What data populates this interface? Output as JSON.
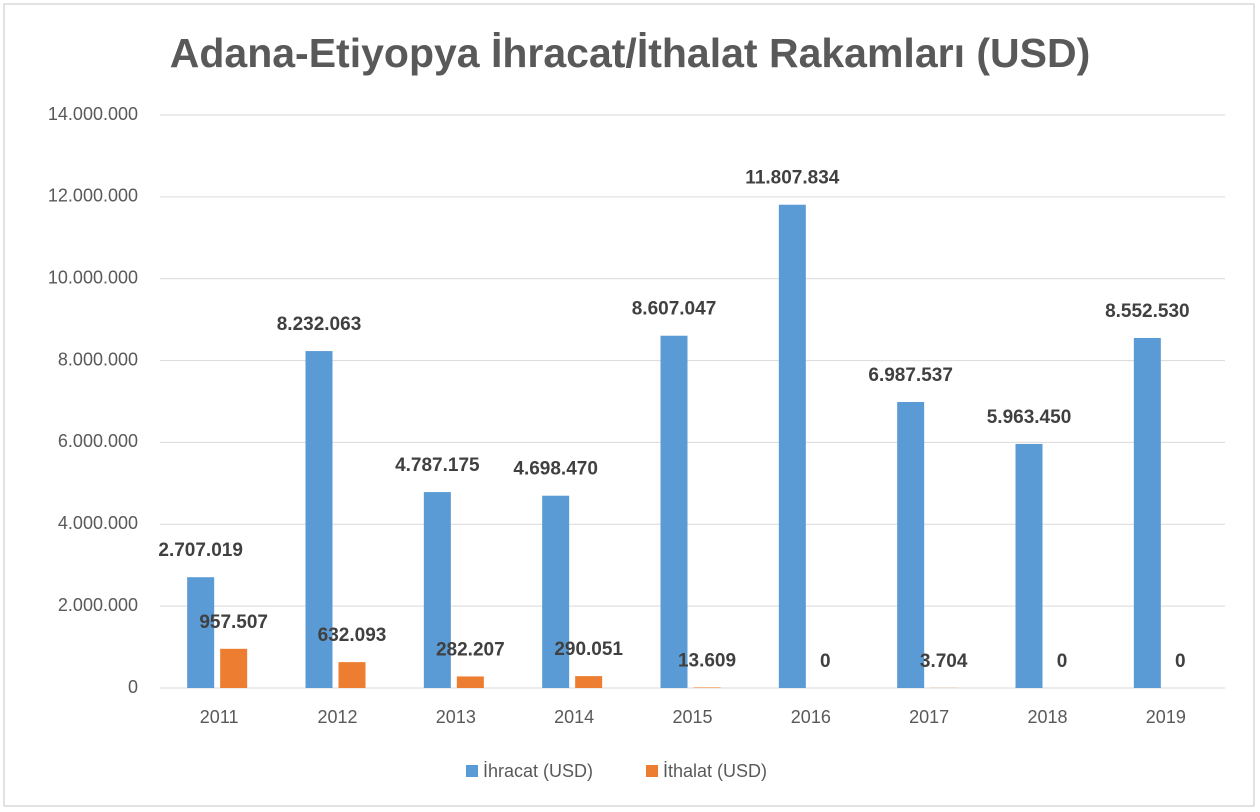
{
  "chart_data": {
    "type": "bar",
    "title": "Adana-Etiyopya İhracat/İthalat Rakamları (USD)",
    "categories": [
      "2011",
      "2012",
      "2013",
      "2014",
      "2015",
      "2016",
      "2017",
      "2018",
      "2019"
    ],
    "series": [
      {
        "name": "İhracat (USD)",
        "color": "#5b9bd5",
        "values": [
          2707019,
          8232063,
          4787175,
          4698470,
          8607047,
          11807834,
          6987537,
          5963450,
          8552530
        ],
        "value_labels": [
          "2.707.019",
          "8.232.063",
          "4.787.175",
          "4.698.470",
          "8.607.047",
          "11.807.834",
          "6.987.537",
          "5.963.450",
          "8.552.530"
        ]
      },
      {
        "name": "İthalat (USD)",
        "color": "#ed7d31",
        "values": [
          957507,
          632093,
          282207,
          290051,
          13609,
          0,
          3704,
          0,
          0
        ],
        "value_labels": [
          "957.507",
          "632.093",
          "282.207",
          "290.051",
          "13.609",
          "0",
          "3.704",
          "0",
          "0"
        ]
      }
    ],
    "ylim": [
      0,
      14000000
    ],
    "yticks": [
      0,
      {
        "value": 2000000,
        "label": "2.000.000"
      },
      {
        "value": 4000000,
        "label": "4.000.000"
      },
      {
        "value": 6000000,
        "label": "6.000.000"
      },
      {
        "value": 8000000,
        "label": "8.000.000"
      },
      {
        "value": 10000000,
        "label": "10.000.000"
      },
      {
        "value": 12000000,
        "label": "12.000.000"
      },
      {
        "value": 14000000,
        "label": "14.000.000"
      }
    ],
    "grid": true,
    "legend": "bottom"
  }
}
